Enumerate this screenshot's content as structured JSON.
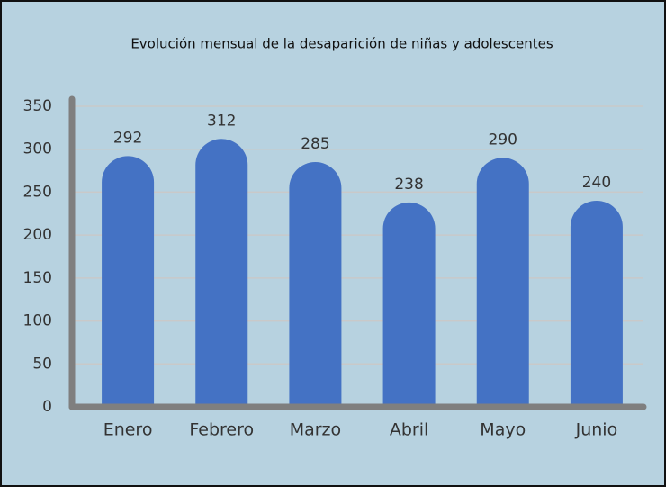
{
  "chart_data": {
    "type": "bar",
    "title": "Evolución mensual de la desaparición de niñas y adolescentes",
    "categories": [
      "Enero",
      "Febrero",
      "Marzo",
      "Abril",
      "Mayo",
      "Junio"
    ],
    "values": [
      292,
      312,
      285,
      238,
      290,
      240
    ],
    "color": "#4472c4",
    "ylim": [
      0,
      350
    ],
    "yticks": [
      0,
      50,
      100,
      150,
      200,
      250,
      300,
      350
    ],
    "grid": true
  }
}
